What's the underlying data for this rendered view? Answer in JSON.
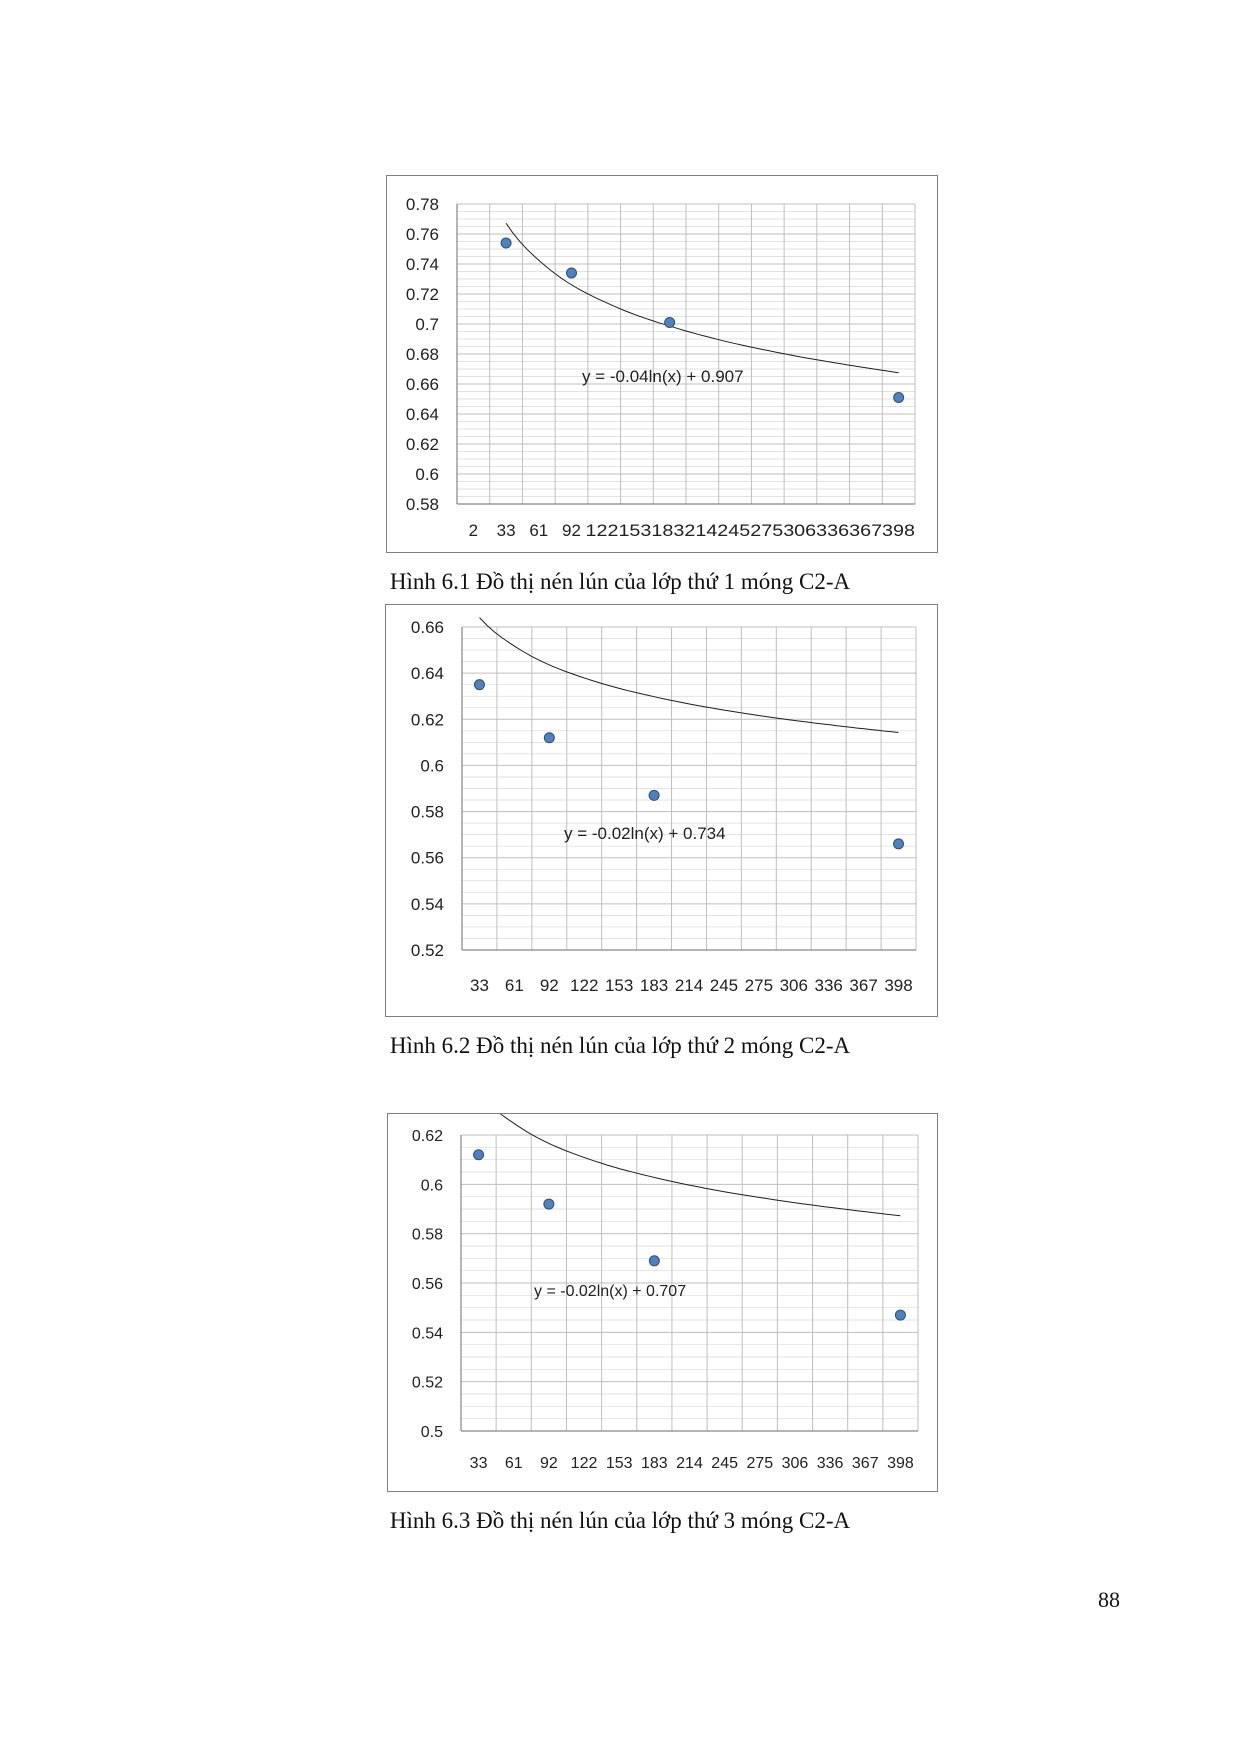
{
  "chart_data": [
    {
      "type": "scatter",
      "title": "",
      "xlabel": "",
      "ylabel": "",
      "ylim": [
        0.58,
        0.78
      ],
      "y_ticks": [
        "0.78",
        "0.76",
        "0.74",
        "0.72",
        "0.7",
        "0.68",
        "0.66",
        "0.64",
        "0.62",
        "0.6",
        "0.58"
      ],
      "x_ticks": [
        "2",
        "33",
        "61",
        "92",
        "122",
        "153",
        "183",
        "214",
        "245",
        "275",
        "306",
        "336",
        "367",
        "398"
      ],
      "x_tick_labels_text": [
        "2",
        "33",
        "61",
        "92",
        "122153183214245275306336367398"
      ],
      "grid": true,
      "trendline": {
        "type": "logarithmic",
        "a": -0.04,
        "b": 0.907,
        "equation": "y = -0.04ln(x) + 0.907"
      },
      "series": [
        {
          "x": [
            33,
            92,
            183,
            398
          ],
          "y": [
            0.754,
            0.734,
            0.701,
            0.651
          ]
        }
      ],
      "marker_color": "#4f81bd",
      "caption": "Hình 6.1 Đồ thị nén lún của lớp thứ 1 móng C2-A"
    },
    {
      "type": "scatter",
      "title": "",
      "xlabel": "",
      "ylabel": "",
      "ylim": [
        0.52,
        0.66
      ],
      "y_ticks": [
        "0.66",
        "0.64",
        "0.62",
        "0.6",
        "0.58",
        "0.56",
        "0.54",
        "0.52"
      ],
      "x_ticks": [
        "33",
        "61",
        "92",
        "122",
        "153",
        "183",
        "214",
        "245",
        "275",
        "306",
        "336",
        "367",
        "398"
      ],
      "grid": true,
      "trendline": {
        "type": "logarithmic",
        "a": -0.02,
        "b": 0.734,
        "equation": "y = -0.02ln(x) + 0.734"
      },
      "series": [
        {
          "x": [
            33,
            92,
            183,
            398
          ],
          "y": [
            0.635,
            0.612,
            0.587,
            0.566
          ]
        }
      ],
      "marker_color": "#4f81bd",
      "caption": "Hình 6.2 Đồ thị nén lún của lớp thứ 2 móng C2-A"
    },
    {
      "type": "scatter",
      "title": "",
      "xlabel": "",
      "ylabel": "",
      "ylim": [
        0.5,
        0.62
      ],
      "y_ticks": [
        "0.62",
        "0.6",
        "0.58",
        "0.56",
        "0.54",
        "0.52",
        "0.5"
      ],
      "x_ticks": [
        "33",
        "61",
        "92",
        "122",
        "153",
        "183",
        "214",
        "245",
        "275",
        "306",
        "336",
        "367",
        "398"
      ],
      "grid": true,
      "trendline": {
        "type": "logarithmic",
        "a": -0.02,
        "b": 0.707,
        "equation": "y = -0.02ln(x) + 0.707"
      },
      "series": [
        {
          "x": [
            33,
            92,
            183,
            398
          ],
          "y": [
            0.612,
            0.592,
            0.569,
            0.547
          ]
        }
      ],
      "marker_color": "#4f81bd",
      "caption": "Hình 6.3 Đồ thị nén lún của lớp thứ 3 móng C2-A"
    }
  ],
  "page_number": "88"
}
